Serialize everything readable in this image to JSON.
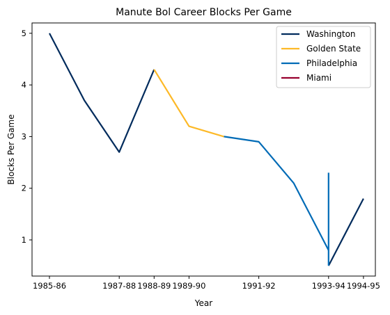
{
  "chart_data": {
    "type": "line",
    "title": "Manute Bol Career Blocks Per Game",
    "xlabel": "Year",
    "ylabel": "Blocks Per Game",
    "x_tick_labels": [
      "1985-86",
      "1987-88",
      "1988-89",
      "1989-90",
      "1991-92",
      "1993-94",
      "1994-95"
    ],
    "y_ticks": [
      1,
      2,
      3,
      4,
      5
    ],
    "ylim": [
      0.3,
      5.2
    ],
    "legend_position": "top-right",
    "grid": false,
    "series": [
      {
        "name": "Washington",
        "color": "#002b5c",
        "segments": [
          [
            [
              "1985-86",
              5.0
            ],
            [
              "1986-87",
              3.7
            ],
            [
              "1987-88",
              2.7
            ],
            [
              "1988-89",
              4.3
            ]
          ],
          [
            [
              "1993-94",
              0.5
            ],
            [
              "1994-95",
              1.8
            ]
          ]
        ]
      },
      {
        "name": "Golden State",
        "color": "#fdb927",
        "segments": [
          [
            [
              "1988-89",
              4.3
            ],
            [
              "1989-90",
              3.2
            ],
            [
              "1990-91",
              3.0
            ]
          ]
        ]
      },
      {
        "name": "Philadelphia",
        "color": "#006bb6",
        "segments": [
          [
            [
              "1990-91",
              3.0
            ],
            [
              "1991-92",
              2.9
            ],
            [
              "1992-93",
              2.1
            ],
            [
              "1993-94",
              0.8
            ]
          ],
          [
            [
              "1993-94",
              2.3
            ],
            [
              "1993-94",
              0.5
            ]
          ]
        ]
      },
      {
        "name": "Miami",
        "color": "#98002e",
        "segments": []
      }
    ]
  }
}
